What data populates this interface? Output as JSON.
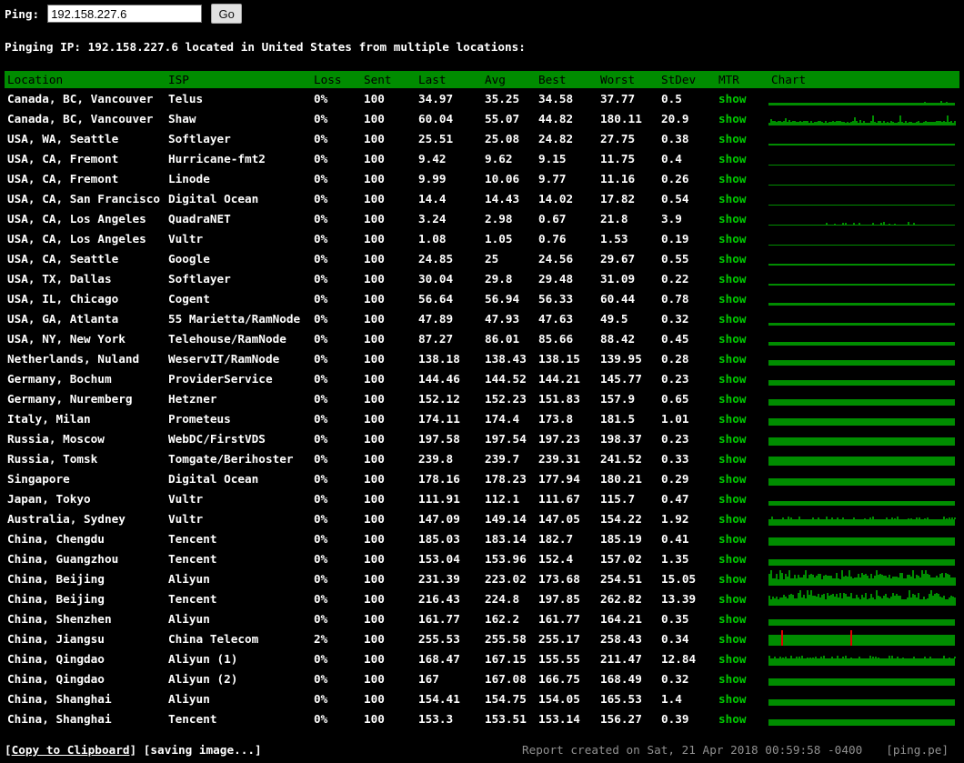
{
  "ping_form": {
    "label": "Ping:",
    "input_value": "192.158.227.6",
    "go_label": "Go"
  },
  "subtitle": {
    "text": "Pinging IP: 192.158.227.6 located in United States from multiple locations:"
  },
  "table": {
    "columns": [
      "Location",
      "ISP",
      "Loss",
      "Sent",
      "Last",
      "Avg",
      "Best",
      "Worst",
      "StDev",
      "MTR",
      "Chart"
    ],
    "mtr_link_label": "show",
    "rows": [
      {
        "location": "Canada, BC, Vancouver",
        "isp": "Telus",
        "loss": "0%",
        "sent": "100",
        "last": "34.97",
        "avg": "35.25",
        "best": "34.58",
        "worst": "37.77",
        "stdev": "0.5",
        "chart": {
          "style": "bumps",
          "h": 3,
          "zone": [
            0.82,
            0.98
          ]
        }
      },
      {
        "location": "Canada, BC, Vancouver",
        "isp": "Shaw",
        "loss": "0%",
        "sent": "100",
        "last": "60.04",
        "avg": "55.07",
        "best": "44.82",
        "worst": "180.11",
        "stdev": "20.9",
        "chart": {
          "style": "spiky",
          "h": 4,
          "zone": [
            0,
            1
          ]
        }
      },
      {
        "location": "USA, WA, Seattle",
        "isp": "Softlayer",
        "loss": "0%",
        "sent": "100",
        "last": "25.51",
        "avg": "25.08",
        "best": "24.82",
        "worst": "27.75",
        "stdev": "0.38",
        "chart": {
          "style": "flat",
          "h": 2
        }
      },
      {
        "location": "USA, CA, Fremont",
        "isp": "Hurricane-fmt2",
        "loss": "0%",
        "sent": "100",
        "last": "9.42",
        "avg": "9.62",
        "best": "9.15",
        "worst": "11.75",
        "stdev": "0.4",
        "chart": {
          "style": "flat",
          "h": 1
        }
      },
      {
        "location": "USA, CA, Fremont",
        "isp": "Linode",
        "loss": "0%",
        "sent": "100",
        "last": "9.99",
        "avg": "10.06",
        "best": "9.77",
        "worst": "11.16",
        "stdev": "0.26",
        "chart": {
          "style": "flat",
          "h": 1
        }
      },
      {
        "location": "USA, CA, San Francisco",
        "isp": "Digital Ocean",
        "loss": "0%",
        "sent": "100",
        "last": "14.4",
        "avg": "14.43",
        "best": "14.02",
        "worst": "17.82",
        "stdev": "0.54",
        "chart": {
          "style": "flat",
          "h": 1
        }
      },
      {
        "location": "USA, CA, Los Angeles",
        "isp": "QuadraNET",
        "loss": "0%",
        "sent": "100",
        "last": "3.24",
        "avg": "2.98",
        "best": "0.67",
        "worst": "21.8",
        "stdev": "3.9",
        "chart": {
          "style": "bumps",
          "h": 1,
          "zone": [
            0.3,
            0.78
          ]
        }
      },
      {
        "location": "USA, CA, Los Angeles",
        "isp": "Vultr",
        "loss": "0%",
        "sent": "100",
        "last": "1.08",
        "avg": "1.05",
        "best": "0.76",
        "worst": "1.53",
        "stdev": "0.19",
        "chart": {
          "style": "flat",
          "h": 1
        }
      },
      {
        "location": "USA, CA, Seattle",
        "isp": "Google",
        "loss": "0%",
        "sent": "100",
        "last": "24.85",
        "avg": "25",
        "best": "24.56",
        "worst": "29.67",
        "stdev": "0.55",
        "chart": {
          "style": "flat",
          "h": 2
        }
      },
      {
        "location": "USA, TX, Dallas",
        "isp": "Softlayer",
        "loss": "0%",
        "sent": "100",
        "last": "30.04",
        "avg": "29.8",
        "best": "29.48",
        "worst": "31.09",
        "stdev": "0.22",
        "chart": {
          "style": "flat",
          "h": 2
        }
      },
      {
        "location": "USA, IL, Chicago",
        "isp": "Cogent",
        "loss": "0%",
        "sent": "100",
        "last": "56.64",
        "avg": "56.94",
        "best": "56.33",
        "worst": "60.44",
        "stdev": "0.78",
        "chart": {
          "style": "flat",
          "h": 3
        }
      },
      {
        "location": "USA, GA, Atlanta",
        "isp": "55 Marietta/RamNode",
        "loss": "0%",
        "sent": "100",
        "last": "47.89",
        "avg": "47.93",
        "best": "47.63",
        "worst": "49.5",
        "stdev": "0.32",
        "chart": {
          "style": "flat",
          "h": 3
        }
      },
      {
        "location": "USA, NY, New York",
        "isp": "Telehouse/RamNode",
        "loss": "0%",
        "sent": "100",
        "last": "87.27",
        "avg": "86.01",
        "best": "85.66",
        "worst": "88.42",
        "stdev": "0.45",
        "chart": {
          "style": "flat",
          "h": 4
        }
      },
      {
        "location": "Netherlands, Nuland",
        "isp": "WeservIT/RamNode",
        "loss": "0%",
        "sent": "100",
        "last": "138.18",
        "avg": "138.43",
        "best": "138.15",
        "worst": "139.95",
        "stdev": "0.28",
        "chart": {
          "style": "flat",
          "h": 6
        }
      },
      {
        "location": "Germany, Bochum",
        "isp": "ProviderService",
        "loss": "0%",
        "sent": "100",
        "last": "144.46",
        "avg": "144.52",
        "best": "144.21",
        "worst": "145.77",
        "stdev": "0.23",
        "chart": {
          "style": "flat",
          "h": 6
        }
      },
      {
        "location": "Germany, Nuremberg",
        "isp": "Hetzner",
        "loss": "0%",
        "sent": "100",
        "last": "152.12",
        "avg": "152.23",
        "best": "151.83",
        "worst": "157.9",
        "stdev": "0.65",
        "chart": {
          "style": "flat",
          "h": 7
        }
      },
      {
        "location": "Italy, Milan",
        "isp": "Prometeus",
        "loss": "0%",
        "sent": "100",
        "last": "174.11",
        "avg": "174.4",
        "best": "173.8",
        "worst": "181.5",
        "stdev": "1.01",
        "chart": {
          "style": "flat",
          "h": 8
        }
      },
      {
        "location": "Russia, Moscow",
        "isp": "WebDC/FirstVDS",
        "loss": "0%",
        "sent": "100",
        "last": "197.58",
        "avg": "197.54",
        "best": "197.23",
        "worst": "198.37",
        "stdev": "0.23",
        "chart": {
          "style": "flat",
          "h": 9
        }
      },
      {
        "location": "Russia, Tomsk",
        "isp": "Tomgate/Berihoster",
        "loss": "0%",
        "sent": "100",
        "last": "239.8",
        "avg": "239.7",
        "best": "239.31",
        "worst": "241.52",
        "stdev": "0.33",
        "chart": {
          "style": "flat",
          "h": 10
        }
      },
      {
        "location": "Singapore",
        "isp": "Digital Ocean",
        "loss": "0%",
        "sent": "100",
        "last": "178.16",
        "avg": "178.23",
        "best": "177.94",
        "worst": "180.21",
        "stdev": "0.29",
        "chart": {
          "style": "flat",
          "h": 8
        }
      },
      {
        "location": "Japan, Tokyo",
        "isp": "Vultr",
        "loss": "0%",
        "sent": "100",
        "last": "111.91",
        "avg": "112.1",
        "best": "111.67",
        "worst": "115.7",
        "stdev": "0.47",
        "chart": {
          "style": "flat",
          "h": 5
        }
      },
      {
        "location": "Australia, Sydney",
        "isp": "Vultr",
        "loss": "0%",
        "sent": "100",
        "last": "147.09",
        "avg": "149.14",
        "best": "147.05",
        "worst": "154.22",
        "stdev": "1.92",
        "chart": {
          "style": "bumps",
          "h": 7,
          "zone": [
            0,
            1
          ]
        }
      },
      {
        "location": "China, Chengdu",
        "isp": "Tencent",
        "loss": "0%",
        "sent": "100",
        "last": "185.03",
        "avg": "183.14",
        "best": "182.7",
        "worst": "185.19",
        "stdev": "0.41",
        "chart": {
          "style": "flat",
          "h": 9
        }
      },
      {
        "location": "China, Guangzhou",
        "isp": "Tencent",
        "loss": "0%",
        "sent": "100",
        "last": "153.04",
        "avg": "153.96",
        "best": "152.4",
        "worst": "157.02",
        "stdev": "1.35",
        "chart": {
          "style": "flat",
          "h": 7
        }
      },
      {
        "location": "China, Beijing",
        "isp": "Aliyun",
        "loss": "0%",
        "sent": "100",
        "last": "231.39",
        "avg": "223.02",
        "best": "173.68",
        "worst": "254.51",
        "stdev": "15.05",
        "chart": {
          "style": "spiky",
          "h": 10,
          "zone": [
            0,
            1
          ]
        }
      },
      {
        "location": "China, Beijing",
        "isp": "Tencent",
        "loss": "0%",
        "sent": "100",
        "last": "216.43",
        "avg": "224.8",
        "best": "197.85",
        "worst": "262.82",
        "stdev": "13.39",
        "chart": {
          "style": "spiky",
          "h": 10,
          "zone": [
            0,
            1
          ]
        }
      },
      {
        "location": "China, Shenzhen",
        "isp": "Aliyun",
        "loss": "0%",
        "sent": "100",
        "last": "161.77",
        "avg": "162.2",
        "best": "161.77",
        "worst": "164.21",
        "stdev": "0.35",
        "chart": {
          "style": "flat",
          "h": 7
        }
      },
      {
        "location": "China, Jiangsu",
        "isp": "China Telecom",
        "loss": "2%",
        "sent": "100",
        "last": "255.53",
        "avg": "255.58",
        "best": "255.17",
        "worst": "258.43",
        "stdev": "0.34",
        "chart": {
          "style": "flat",
          "h": 12,
          "red": [
            0.07,
            0.44
          ]
        }
      },
      {
        "location": "China, Qingdao",
        "isp": "Aliyun (1)",
        "loss": "0%",
        "sent": "100",
        "last": "168.47",
        "avg": "167.15",
        "best": "155.55",
        "worst": "211.47",
        "stdev": "12.84",
        "chart": {
          "style": "bumps",
          "h": 8,
          "zone": [
            0,
            1
          ]
        }
      },
      {
        "location": "China, Qingdao",
        "isp": "Aliyun (2)",
        "loss": "0%",
        "sent": "100",
        "last": "167",
        "avg": "167.08",
        "best": "166.75",
        "worst": "168.49",
        "stdev": "0.32",
        "chart": {
          "style": "flat",
          "h": 8
        }
      },
      {
        "location": "China, Shanghai",
        "isp": "Aliyun",
        "loss": "0%",
        "sent": "100",
        "last": "154.41",
        "avg": "154.75",
        "best": "154.05",
        "worst": "165.53",
        "stdev": "1.4",
        "chart": {
          "style": "flat",
          "h": 7
        }
      },
      {
        "location": "China, Shanghai",
        "isp": "Tencent",
        "loss": "0%",
        "sent": "100",
        "last": "153.3",
        "avg": "153.51",
        "best": "153.14",
        "worst": "156.27",
        "stdev": "0.39",
        "chart": {
          "style": "flat",
          "h": 7
        }
      }
    ]
  },
  "footer": {
    "open_bracket": "[",
    "copy_label": "Copy to Clipboard",
    "close_bracket": "] ",
    "saving_label": "[saving image...]",
    "report": "Report created on Sat, 21 Apr 2018 00:59:58 -0400",
    "brand": "[ping.pe]"
  },
  "colors": {
    "header_green": "#008C00",
    "chart_green": "#008C00",
    "link_green": "#00CC00",
    "loss_red": "#E00000",
    "footer_gray": "#909090"
  }
}
